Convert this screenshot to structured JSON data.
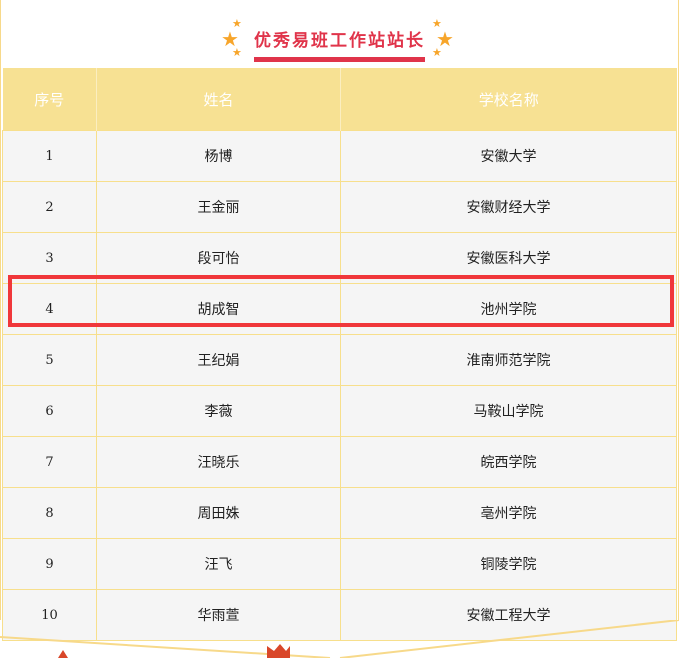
{
  "title": "优秀易班工作站站长",
  "colors": {
    "accent": "#e0344a",
    "header_bg": "#f7e193",
    "highlight": "#f0373a",
    "star": "#f7a52a"
  },
  "table": {
    "headers": [
      "序号",
      "姓名",
      "学校名称"
    ],
    "rows": [
      [
        "1",
        "杨博",
        "安徽大学"
      ],
      [
        "2",
        "王金丽",
        "安徽财经大学"
      ],
      [
        "3",
        "段可怡",
        "安徽医科大学"
      ],
      [
        "4",
        "胡成智",
        "池州学院"
      ],
      [
        "5",
        "王纪娟",
        "淮南师范学院"
      ],
      [
        "6",
        "李薇",
        "马鞍山学院"
      ],
      [
        "7",
        "汪晓乐",
        "皖西学院"
      ],
      [
        "8",
        "周田姝",
        "亳州学院"
      ],
      [
        "9",
        "汪飞",
        "铜陵学院"
      ],
      [
        "10",
        "华雨萱",
        "安徽工程大学"
      ]
    ],
    "highlighted_row": "4"
  }
}
